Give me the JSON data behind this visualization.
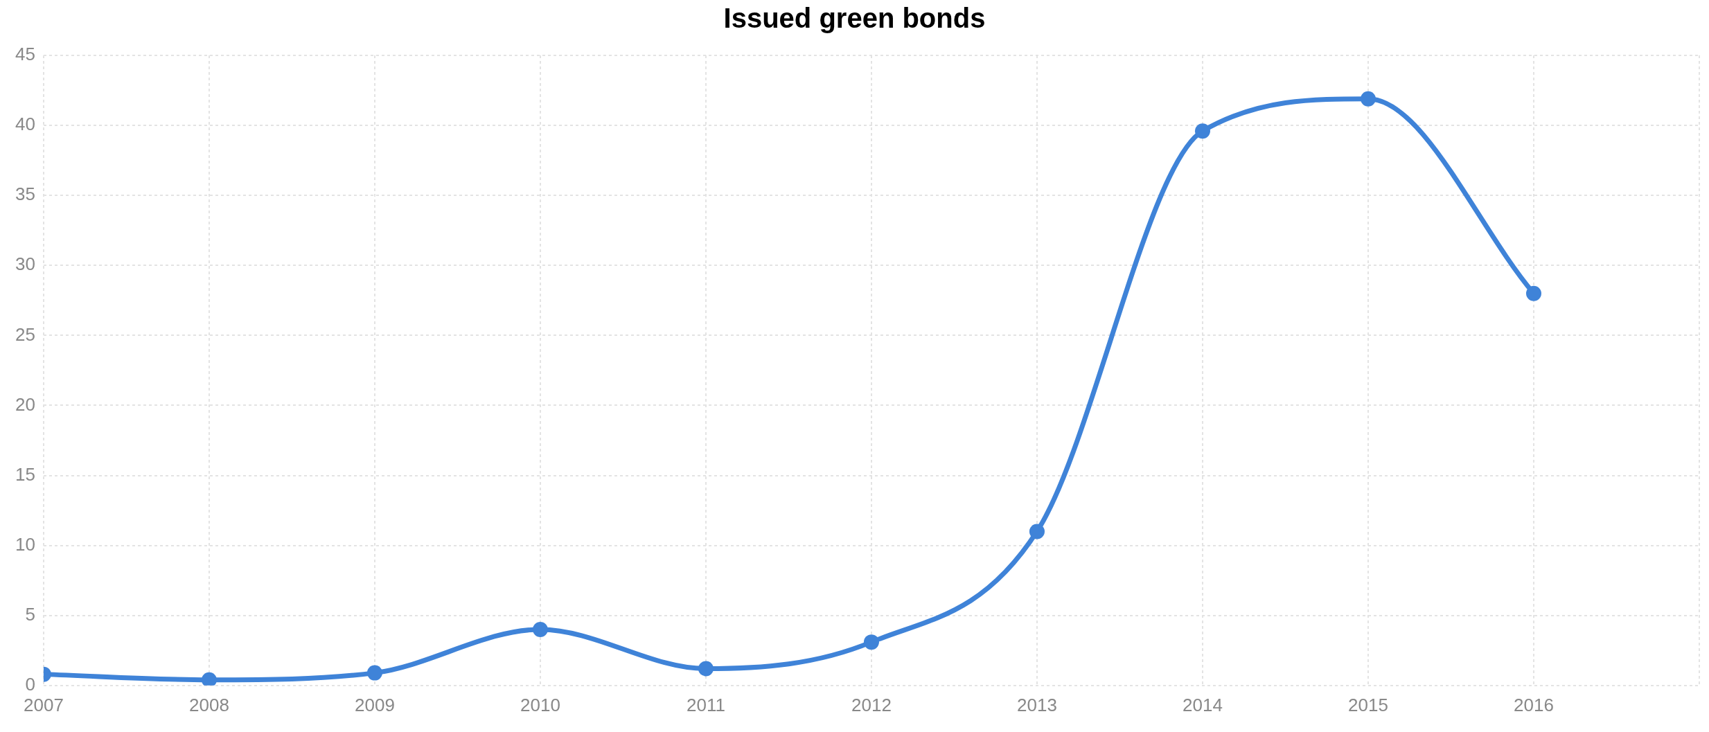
{
  "chart_data": {
    "type": "line",
    "title": "Issued green bonds",
    "x": [
      2007,
      2008,
      2009,
      2010,
      2011,
      2012,
      2013,
      2014,
      2015,
      2016
    ],
    "series": [
      {
        "color": "#3f83d8",
        "values": [
          0.8,
          0.4,
          0.9,
          4.0,
          1.2,
          3.1,
          11.0,
          39.6,
          41.9,
          28.0
        ]
      }
    ],
    "xlim": [
      2007,
      2017
    ],
    "xticks": [
      2007,
      2008,
      2009,
      2010,
      2011,
      2012,
      2013,
      2014,
      2015,
      2016,
      {
        "value": 2017,
        "label": null
      }
    ],
    "ylim": [
      0,
      45
    ],
    "yticks": [
      0,
      5,
      10,
      15,
      20,
      25,
      30,
      35,
      40,
      45
    ],
    "grid": true,
    "marker": "circle",
    "line_style": "solid",
    "legend": false
  }
}
